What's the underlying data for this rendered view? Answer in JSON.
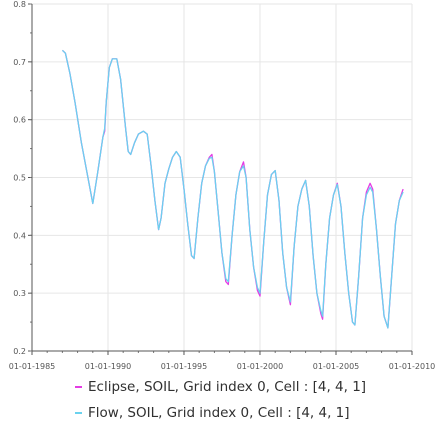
{
  "chart_data": {
    "type": "line",
    "title": "",
    "xlabel": "",
    "ylabel": "",
    "x_type": "date",
    "xlim": [
      "1985-01-01",
      "2010-01-01"
    ],
    "ylim": [
      0.2,
      0.8
    ],
    "x_ticks": [
      "01-01-1985",
      "01-01-1990",
      "01-01-1995",
      "01-01-2000",
      "01-01-2005",
      "01-01-2010"
    ],
    "y_ticks": [
      "0.2",
      "0.3",
      "0.4",
      "0.5",
      "0.6",
      "0.7",
      "0.8"
    ],
    "grid": true,
    "legend_position": "bottom",
    "series": [
      {
        "name": "Eclipse, SOIL, Grid index 0, Cell : [4, 4, 1]",
        "color": "#e43ce4",
        "points": [
          [
            "1987-01-01",
            0.72
          ],
          [
            "1987-03-15",
            0.715
          ],
          [
            "1987-07-01",
            0.68
          ],
          [
            "1987-11-01",
            0.63
          ],
          [
            "1988-04-01",
            0.56
          ],
          [
            "1988-10-01",
            0.49
          ],
          [
            "1989-01-01",
            0.455
          ],
          [
            "1989-05-01",
            0.51
          ],
          [
            "1989-09-01",
            0.57
          ],
          [
            "1989-10-15",
            0.58
          ],
          [
            "1989-11-20",
            0.63
          ],
          [
            "1990-02-01",
            0.69
          ],
          [
            "1990-04-15",
            0.705
          ],
          [
            "1990-08-01",
            0.705
          ],
          [
            "1990-11-01",
            0.67
          ],
          [
            "1991-03-01",
            0.585
          ],
          [
            "1991-05-01",
            0.545
          ],
          [
            "1991-07-01",
            0.54
          ],
          [
            "1991-10-01",
            0.56
          ],
          [
            "1992-01-01",
            0.575
          ],
          [
            "1992-05-01",
            0.58
          ],
          [
            "1992-08-01",
            0.575
          ],
          [
            "1992-11-01",
            0.52
          ],
          [
            "1993-02-01",
            0.46
          ],
          [
            "1993-05-01",
            0.41
          ],
          [
            "1993-07-01",
            0.43
          ],
          [
            "1993-10-01",
            0.49
          ],
          [
            "1994-01-01",
            0.515
          ],
          [
            "1994-04-01",
            0.535
          ],
          [
            "1994-07-01",
            0.545
          ],
          [
            "1994-10-01",
            0.535
          ],
          [
            "1995-01-01",
            0.48
          ],
          [
            "1995-04-01",
            0.42
          ],
          [
            "1995-07-01",
            0.365
          ],
          [
            "1995-09-01",
            0.36
          ],
          [
            "1995-12-01",
            0.43
          ],
          [
            "1996-03-01",
            0.49
          ],
          [
            "1996-06-01",
            0.52
          ],
          [
            "1996-09-01",
            0.535
          ],
          [
            "1996-11-01",
            0.54
          ],
          [
            "1997-01-01",
            0.51
          ],
          [
            "1997-04-01",
            0.44
          ],
          [
            "1997-07-01",
            0.37
          ],
          [
            "1997-10-01",
            0.32
          ],
          [
            "1997-12-01",
            0.315
          ],
          [
            "1998-03-01",
            0.4
          ],
          [
            "1998-06-01",
            0.47
          ],
          [
            "1998-09-01",
            0.51
          ],
          [
            "1998-12-01",
            0.527
          ],
          [
            "1999-02-01",
            0.5
          ],
          [
            "1999-05-01",
            0.41
          ],
          [
            "1999-08-01",
            0.345
          ],
          [
            "1999-11-01",
            0.305
          ],
          [
            "2000-01-01",
            0.295
          ],
          [
            "2000-04-01",
            0.39
          ],
          [
            "2000-07-01",
            0.47
          ],
          [
            "2000-10-01",
            0.505
          ],
          [
            "2001-01-01",
            0.512
          ],
          [
            "2001-04-01",
            0.46
          ],
          [
            "2001-07-01",
            0.37
          ],
          [
            "2001-10-01",
            0.31
          ],
          [
            "2002-01-01",
            0.28
          ],
          [
            "2002-04-01",
            0.38
          ],
          [
            "2002-07-01",
            0.45
          ],
          [
            "2002-10-01",
            0.48
          ],
          [
            "2003-01-01",
            0.495
          ],
          [
            "2003-04-01",
            0.45
          ],
          [
            "2003-07-01",
            0.365
          ],
          [
            "2003-10-01",
            0.3
          ],
          [
            "2004-01-01",
            0.265
          ],
          [
            "2004-02-15",
            0.255
          ],
          [
            "2004-05-01",
            0.35
          ],
          [
            "2004-08-01",
            0.43
          ],
          [
            "2004-11-01",
            0.47
          ],
          [
            "2005-02-01",
            0.49
          ],
          [
            "2005-05-01",
            0.45
          ],
          [
            "2005-08-01",
            0.37
          ],
          [
            "2005-11-01",
            0.3
          ],
          [
            "2006-02-01",
            0.25
          ],
          [
            "2006-04-01",
            0.245
          ],
          [
            "2006-07-01",
            0.33
          ],
          [
            "2006-10-01",
            0.43
          ],
          [
            "2007-01-01",
            0.475
          ],
          [
            "2007-04-01",
            0.49
          ],
          [
            "2007-06-01",
            0.48
          ],
          [
            "2007-09-01",
            0.41
          ],
          [
            "2007-12-01",
            0.33
          ],
          [
            "2008-03-01",
            0.26
          ],
          [
            "2008-06-01",
            0.24
          ],
          [
            "2008-09-01",
            0.33
          ],
          [
            "2008-12-01",
            0.42
          ],
          [
            "2009-03-01",
            0.46
          ],
          [
            "2009-06-01",
            0.48
          ]
        ]
      },
      {
        "name": "Flow, SOIL, Grid index 0, Cell : [4, 4, 1]",
        "color": "#6ad2ee",
        "points": [
          [
            "1987-01-01",
            0.72
          ],
          [
            "1987-03-15",
            0.715
          ],
          [
            "1987-07-01",
            0.68
          ],
          [
            "1987-11-01",
            0.63
          ],
          [
            "1988-04-01",
            0.56
          ],
          [
            "1988-10-01",
            0.49
          ],
          [
            "1989-01-01",
            0.455
          ],
          [
            "1989-05-01",
            0.51
          ],
          [
            "1989-09-01",
            0.57
          ],
          [
            "1989-10-15",
            0.585
          ],
          [
            "1989-11-20",
            0.63
          ],
          [
            "1990-02-01",
            0.69
          ],
          [
            "1990-04-15",
            0.705
          ],
          [
            "1990-08-01",
            0.705
          ],
          [
            "1990-11-01",
            0.67
          ],
          [
            "1991-03-01",
            0.585
          ],
          [
            "1991-05-01",
            0.545
          ],
          [
            "1991-07-01",
            0.54
          ],
          [
            "1991-10-01",
            0.56
          ],
          [
            "1992-01-01",
            0.575
          ],
          [
            "1992-05-01",
            0.58
          ],
          [
            "1992-08-01",
            0.575
          ],
          [
            "1992-11-01",
            0.52
          ],
          [
            "1993-02-01",
            0.46
          ],
          [
            "1993-05-01",
            0.41
          ],
          [
            "1993-07-01",
            0.43
          ],
          [
            "1993-10-01",
            0.49
          ],
          [
            "1994-01-01",
            0.515
          ],
          [
            "1994-04-01",
            0.535
          ],
          [
            "1994-07-01",
            0.545
          ],
          [
            "1994-10-01",
            0.535
          ],
          [
            "1995-01-01",
            0.48
          ],
          [
            "1995-04-01",
            0.42
          ],
          [
            "1995-07-01",
            0.365
          ],
          [
            "1995-09-01",
            0.36
          ],
          [
            "1995-12-01",
            0.43
          ],
          [
            "1996-03-01",
            0.49
          ],
          [
            "1996-06-01",
            0.52
          ],
          [
            "1996-09-01",
            0.533
          ],
          [
            "1996-11-01",
            0.535
          ],
          [
            "1997-01-01",
            0.51
          ],
          [
            "1997-04-01",
            0.44
          ],
          [
            "1997-07-01",
            0.37
          ],
          [
            "1997-10-01",
            0.325
          ],
          [
            "1997-12-01",
            0.32
          ],
          [
            "1998-03-01",
            0.4
          ],
          [
            "1998-06-01",
            0.47
          ],
          [
            "1998-09-01",
            0.51
          ],
          [
            "1998-12-01",
            0.52
          ],
          [
            "1999-02-01",
            0.5
          ],
          [
            "1999-05-01",
            0.41
          ],
          [
            "1999-08-01",
            0.345
          ],
          [
            "1999-11-01",
            0.31
          ],
          [
            "2000-01-01",
            0.3
          ],
          [
            "2000-04-01",
            0.39
          ],
          [
            "2000-07-01",
            0.47
          ],
          [
            "2000-10-01",
            0.505
          ],
          [
            "2001-01-01",
            0.512
          ],
          [
            "2001-04-01",
            0.46
          ],
          [
            "2001-07-01",
            0.37
          ],
          [
            "2001-10-01",
            0.31
          ],
          [
            "2002-01-01",
            0.285
          ],
          [
            "2002-04-01",
            0.38
          ],
          [
            "2002-07-01",
            0.45
          ],
          [
            "2002-10-01",
            0.48
          ],
          [
            "2003-01-01",
            0.495
          ],
          [
            "2003-04-01",
            0.45
          ],
          [
            "2003-07-01",
            0.365
          ],
          [
            "2003-10-01",
            0.3
          ],
          [
            "2004-01-01",
            0.27
          ],
          [
            "2004-02-15",
            0.26
          ],
          [
            "2004-05-01",
            0.35
          ],
          [
            "2004-08-01",
            0.43
          ],
          [
            "2004-11-01",
            0.47
          ],
          [
            "2005-02-01",
            0.488
          ],
          [
            "2005-05-01",
            0.45
          ],
          [
            "2005-08-01",
            0.37
          ],
          [
            "2005-11-01",
            0.3
          ],
          [
            "2006-02-01",
            0.25
          ],
          [
            "2006-04-01",
            0.245
          ],
          [
            "2006-07-01",
            0.33
          ],
          [
            "2006-10-01",
            0.43
          ],
          [
            "2007-01-01",
            0.47
          ],
          [
            "2007-04-01",
            0.483
          ],
          [
            "2007-06-01",
            0.475
          ],
          [
            "2007-09-01",
            0.41
          ],
          [
            "2007-12-01",
            0.33
          ],
          [
            "2008-03-01",
            0.26
          ],
          [
            "2008-06-01",
            0.24
          ],
          [
            "2008-09-01",
            0.33
          ],
          [
            "2008-12-01",
            0.42
          ],
          [
            "2009-03-01",
            0.46
          ],
          [
            "2009-06-01",
            0.475
          ]
        ]
      }
    ]
  }
}
